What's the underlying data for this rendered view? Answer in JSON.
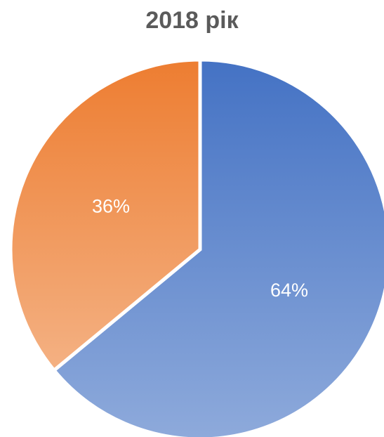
{
  "chart_data": {
    "type": "pie",
    "title": "2018 рік",
    "categories": [
      "",
      ""
    ],
    "values": [
      64,
      36
    ],
    "labels": [
      "64%",
      "36%"
    ],
    "colors": {
      "slice_1": {
        "top": "#4472c4",
        "bottom": "#8eaadb"
      },
      "slice_2": {
        "top": "#ed7d31",
        "bottom": "#f4b183"
      }
    },
    "legend": "none"
  }
}
